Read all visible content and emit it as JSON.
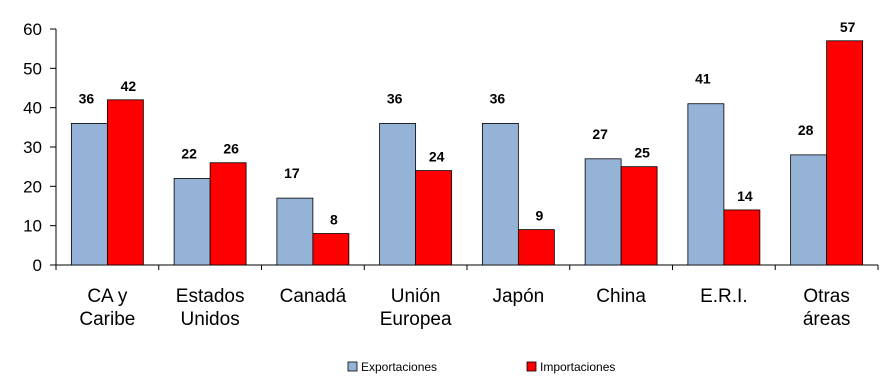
{
  "chart_data": {
    "type": "bar",
    "categories": [
      [
        "CA y",
        "Caribe"
      ],
      [
        "Estados",
        "Unidos"
      ],
      [
        "Canadá"
      ],
      [
        "Unión",
        "Europea"
      ],
      [
        "Japón"
      ],
      [
        "China"
      ],
      [
        "E.R.I."
      ],
      [
        "Otras",
        "áreas"
      ]
    ],
    "series": [
      {
        "name": "Exportaciones",
        "color": "#95B3D7",
        "values": [
          36,
          22,
          17,
          36,
          36,
          27,
          41,
          28
        ]
      },
      {
        "name": "Importaciones",
        "color": "#FF0000",
        "values": [
          42,
          26,
          8,
          24,
          9,
          25,
          14,
          57
        ]
      }
    ],
    "ylim": [
      0,
      60
    ],
    "yticks": [
      0,
      10,
      20,
      30,
      40,
      50,
      60
    ],
    "grid": false,
    "legend_position": "bottom"
  }
}
